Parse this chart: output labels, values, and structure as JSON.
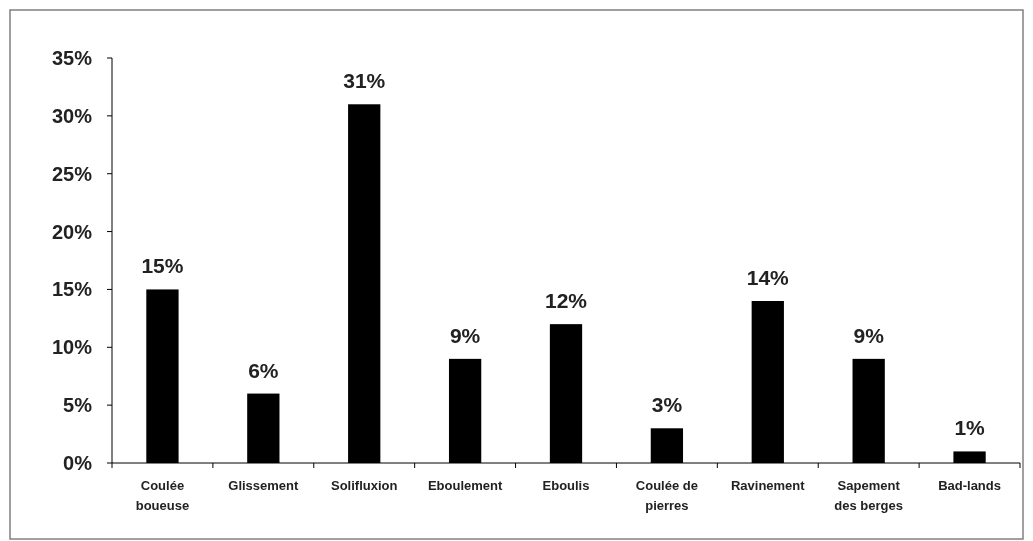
{
  "chart_data": {
    "type": "bar",
    "categories": [
      "Coulée boueuse",
      "Glissement",
      "Solifluxion",
      "Eboulement",
      "Eboulis",
      "Coulée de pierres",
      "Ravinement",
      "Sapement des berges",
      "Bad-lands"
    ],
    "values": [
      15,
      6,
      31,
      9,
      12,
      3,
      14,
      9,
      1
    ],
    "color": "#000000",
    "value_labels": [
      "15%",
      "6%",
      "31%",
      "9%",
      "12%",
      "3%",
      "14%",
      "9%",
      "1%"
    ],
    "ylim": [
      0,
      35
    ],
    "yticks": [
      {
        "value": 0,
        "label": "0%"
      },
      {
        "value": 5,
        "label": "5%"
      },
      {
        "value": 10,
        "label": "10%"
      },
      {
        "value": 15,
        "label": "15%"
      },
      {
        "value": 20,
        "label": "20%"
      },
      {
        "value": 25,
        "label": "25%"
      },
      {
        "value": 30,
        "label": "30%"
      },
      {
        "value": 35,
        "label": "35%"
      }
    ],
    "grid": false
  }
}
